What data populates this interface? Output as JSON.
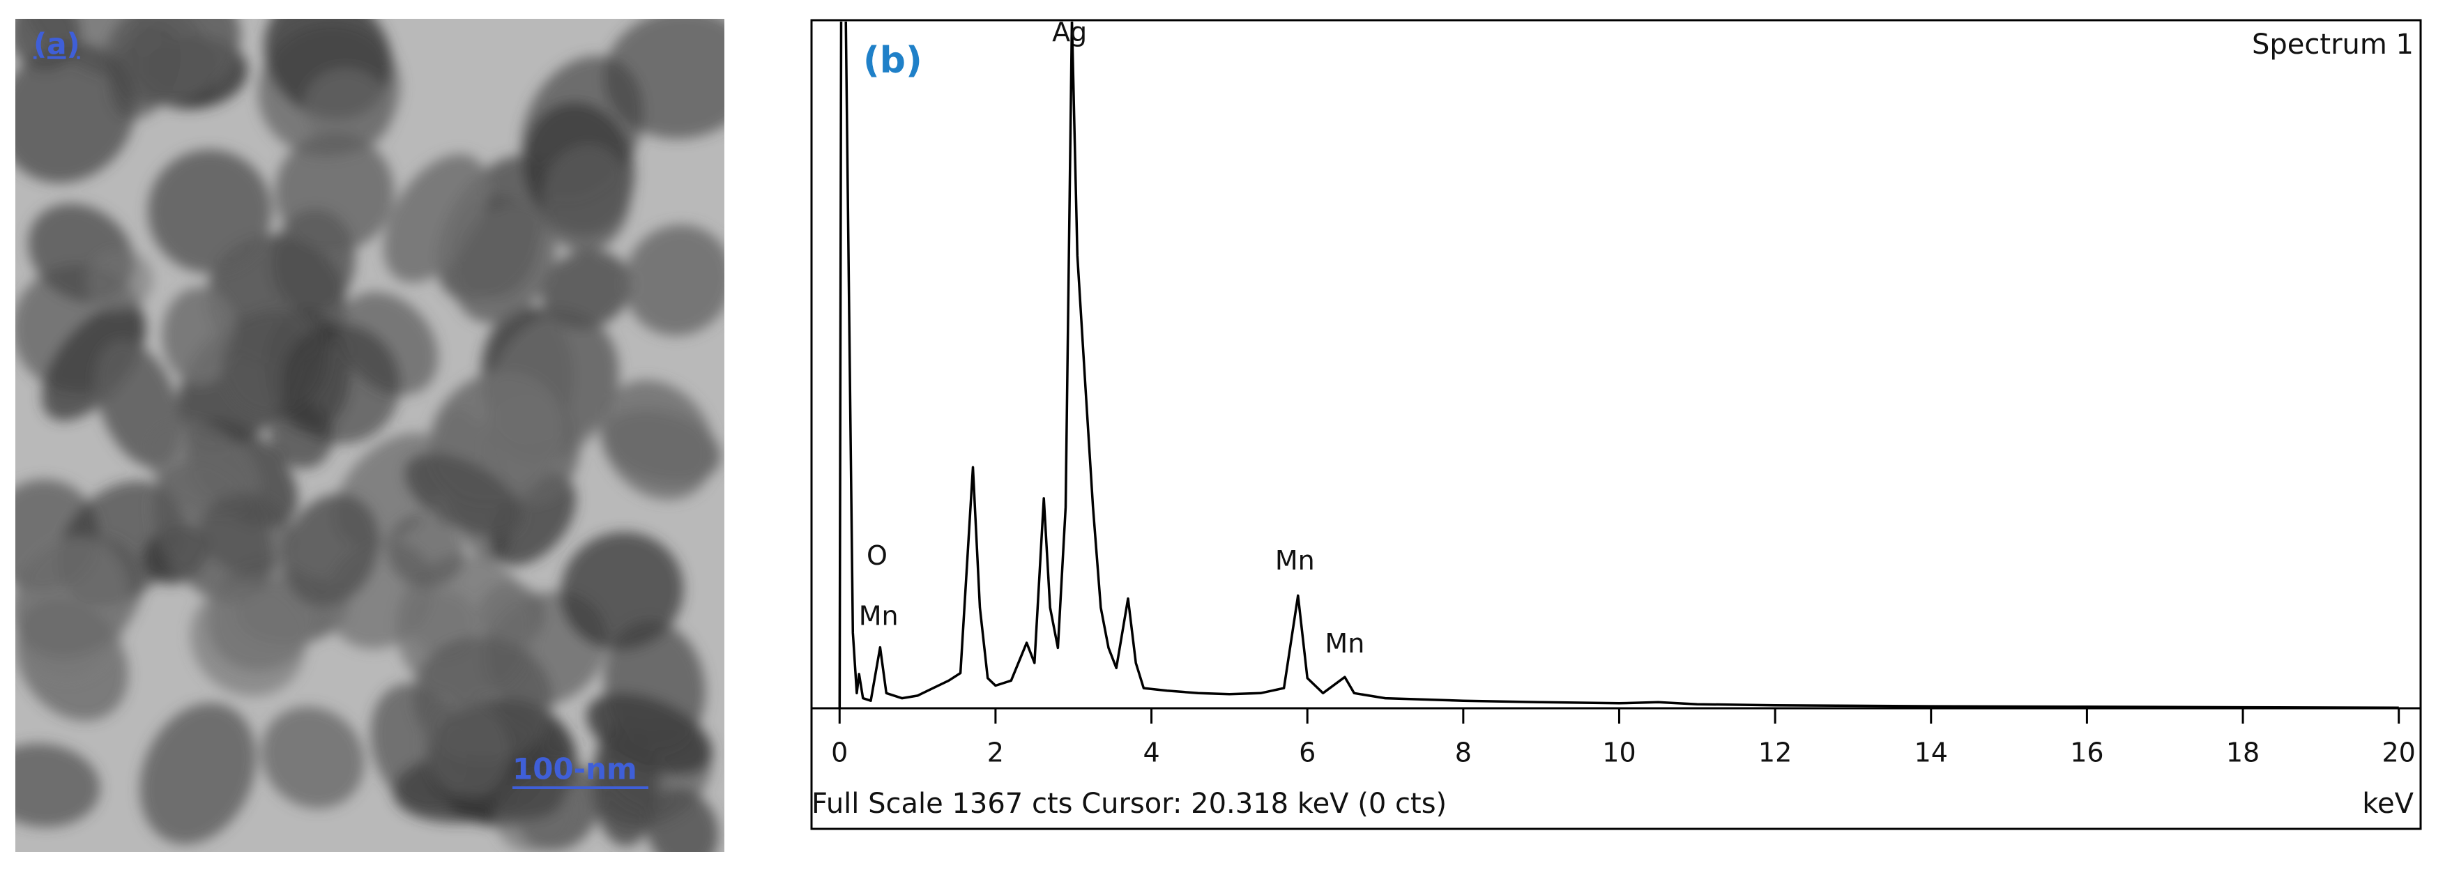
{
  "panel_a": {
    "label": "(a)",
    "scale_bar": "100-nm"
  },
  "chart_data": {
    "type": "line",
    "panel_label": "(b)",
    "title": "Spectrum 1",
    "footer": "Full Scale 1367 cts  Cursor: 20.318 keV (0 cts)",
    "x_unit": "keV",
    "color": "#000000",
    "x": [
      0.0,
      0.02,
      0.08,
      0.12,
      0.17,
      0.22,
      0.25,
      0.3,
      0.4,
      0.52,
      0.6,
      0.8,
      1.0,
      1.2,
      1.4,
      1.55,
      1.71,
      1.8,
      1.9,
      2.0,
      2.2,
      2.4,
      2.5,
      2.62,
      2.7,
      2.8,
      2.9,
      2.98,
      3.05,
      3.15,
      3.25,
      3.35,
      3.45,
      3.55,
      3.7,
      3.8,
      3.9,
      4.2,
      4.6,
      5.0,
      5.4,
      5.7,
      5.88,
      6.0,
      6.2,
      6.48,
      6.6,
      7.0,
      8.0,
      9.0,
      10.0,
      10.5,
      11.0,
      12.0,
      13.0,
      14.0,
      16.0,
      18.0,
      20.0
    ],
    "values": [
      0,
      1367,
      1367,
      820,
      150,
      30,
      68,
      20,
      15,
      121,
      30,
      20,
      25,
      40,
      55,
      70,
      479,
      200,
      60,
      45,
      55,
      130,
      90,
      417,
      200,
      120,
      400,
      1367,
      900,
      647,
      400,
      200,
      120,
      80,
      218,
      90,
      40,
      35,
      30,
      28,
      30,
      40,
      224,
      60,
      30,
      62,
      30,
      20,
      15,
      12,
      10,
      12,
      8,
      6,
      5,
      4,
      3,
      2,
      1
    ],
    "annotations": [
      {
        "text": "Ag",
        "x": 2.95,
        "y": 1340
      },
      {
        "text": "O",
        "x": 0.48,
        "y": 300
      },
      {
        "text": "Mn",
        "x": 0.5,
        "y": 180
      },
      {
        "text": "Mn",
        "x": 5.84,
        "y": 290
      },
      {
        "text": "Mn",
        "x": 6.48,
        "y": 125
      }
    ],
    "xlim": [
      -0.36,
      20.28
    ],
    "ylim": [
      0,
      1367
    ],
    "xticks": [
      0,
      2,
      4,
      6,
      8,
      10,
      12,
      14,
      16,
      18,
      20
    ]
  }
}
